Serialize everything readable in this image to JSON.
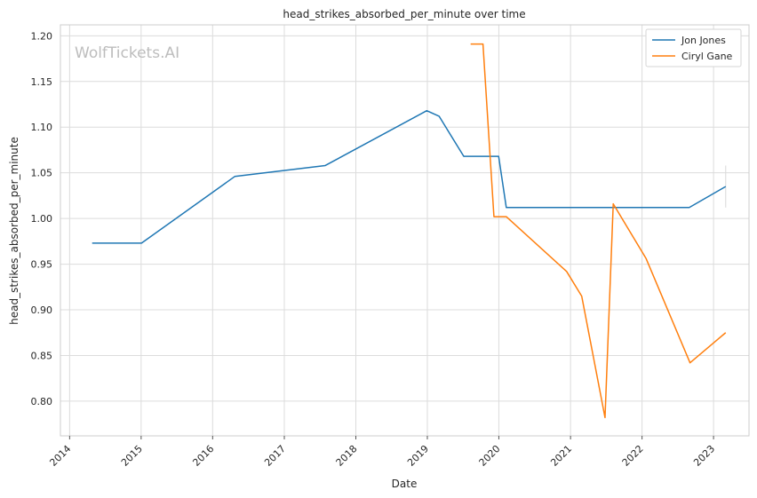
{
  "chart_data": {
    "type": "line",
    "title": "head_strikes_absorbed_per_minute over time",
    "xlabel": "Date",
    "ylabel": "head_strikes_absorbed_per_minute",
    "watermark": "WolfTickets.AI",
    "xlim": [
      "2013-11-15",
      "2023-07-01"
    ],
    "ylim": [
      0.762,
      1.212
    ],
    "x_ticks": [
      "2014",
      "2015",
      "2016",
      "2017",
      "2018",
      "2019",
      "2020",
      "2021",
      "2022",
      "2023"
    ],
    "y_ticks": [
      "0.80",
      "0.85",
      "0.90",
      "0.95",
      "1.00",
      "1.05",
      "1.10",
      "1.15",
      "1.20"
    ],
    "grid": true,
    "legend_position": "top-right",
    "series": [
      {
        "name": "Jon Jones",
        "color": "#1f77b4",
        "points": [
          [
            "2014-04-26",
            0.973
          ],
          [
            "2015-01-03",
            0.973
          ],
          [
            "2016-04-23",
            1.046
          ],
          [
            "2017-07-29",
            1.058
          ],
          [
            "2018-12-29",
            1.118
          ],
          [
            "2019-03-02",
            1.112
          ],
          [
            "2019-07-06",
            1.068
          ],
          [
            "2019-12-31",
            1.068
          ],
          [
            "2020-02-08",
            1.012
          ],
          [
            "2022-08-30",
            1.012
          ],
          [
            "2023-03-04",
            1.035
          ]
        ]
      },
      {
        "name": "Ciryl Gane",
        "color": "#ff7f0e",
        "points": [
          [
            "2019-08-10",
            1.191
          ],
          [
            "2019-10-12",
            1.191
          ],
          [
            "2019-12-07",
            1.002
          ],
          [
            "2020-02-08",
            1.002
          ],
          [
            "2020-12-12",
            0.942
          ],
          [
            "2021-02-27",
            0.915
          ],
          [
            "2021-06-26",
            0.782
          ],
          [
            "2021-08-07",
            1.016
          ],
          [
            "2022-01-22",
            0.956
          ],
          [
            "2022-09-03",
            0.842
          ],
          [
            "2023-03-04",
            0.875
          ]
        ]
      }
    ],
    "error_bar": {
      "x": "2023-03-04",
      "low": 1.012,
      "high": 1.058,
      "color": "#d9d9d9"
    }
  }
}
